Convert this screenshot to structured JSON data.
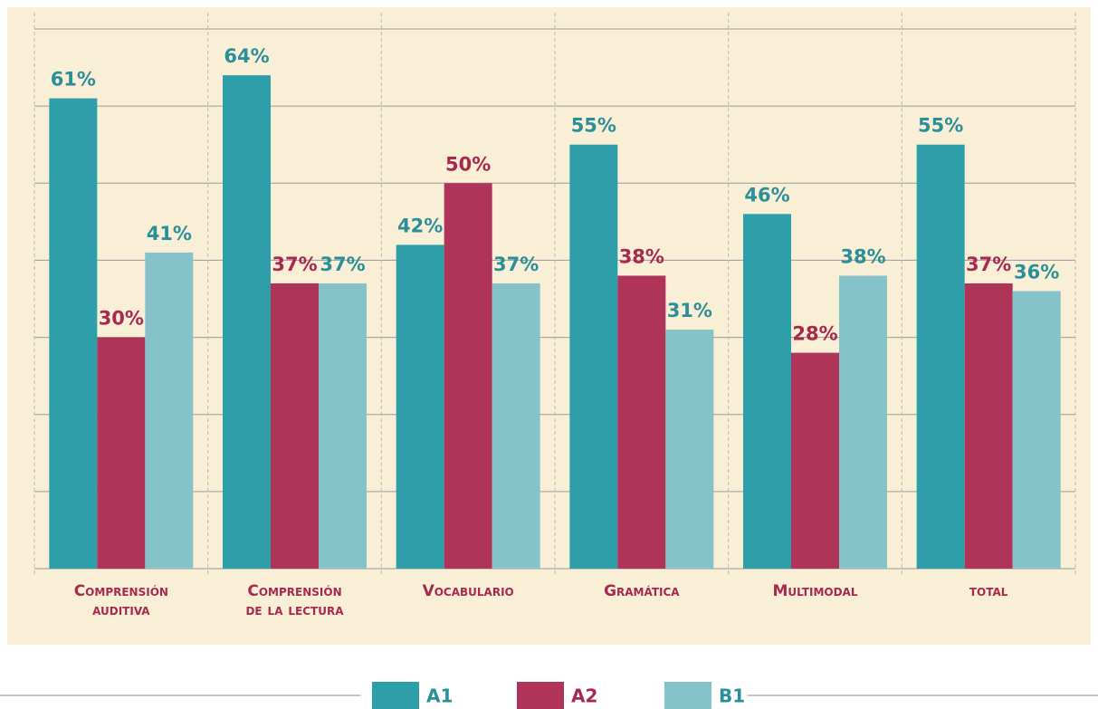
{
  "chart_data": {
    "type": "bar",
    "categories": [
      "Comprensión auditiva",
      "Comprensión de la lectura",
      "Vocabulario",
      "Gramática",
      "Multimodal",
      "total"
    ],
    "series": [
      {
        "name": "A1",
        "color": "#2e9fa8",
        "label_color": "#2a8f99",
        "values": [
          61,
          64,
          42,
          55,
          46,
          55
        ],
        "value_labels": [
          "61%",
          "64%",
          "42%",
          "55%",
          "46%",
          "55%"
        ]
      },
      {
        "name": "A2",
        "color": "#b03459",
        "label_color": "#a8294f",
        "values": [
          30,
          37,
          50,
          38,
          28,
          37
        ],
        "value_labels": [
          "30%",
          "37%",
          "50%",
          "38%",
          "28%",
          "37%"
        ]
      },
      {
        "name": "B1",
        "color": "#86c3c9",
        "label_color": "#2a8f99",
        "values": [
          41,
          37,
          37,
          31,
          38,
          36
        ],
        "value_labels": [
          "41%",
          "37%",
          "37%",
          "31%",
          "38%",
          "36%"
        ]
      }
    ],
    "ylim": [
      0,
      70
    ],
    "yticks": [
      0,
      10,
      20,
      30,
      40,
      50,
      60,
      70
    ],
    "grid": true,
    "legend": "bottom"
  }
}
